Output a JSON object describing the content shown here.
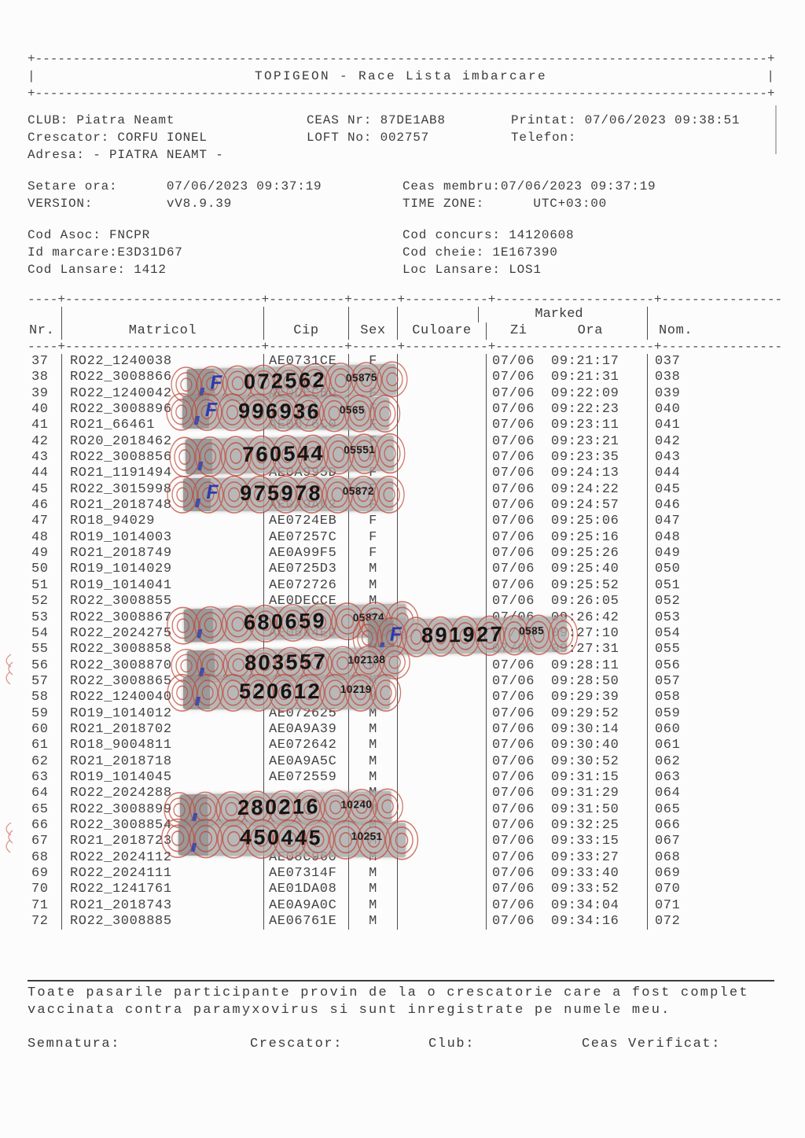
{
  "header_box": {
    "top_line": "+-------------------------------------------------------------------------------------------------+",
    "title": "TOPIGEON  -  Race Lista imbarcare",
    "pipe": "|",
    "bottom_line": "+-------------------------------------------------------------------------------------------------+"
  },
  "club_info": {
    "club": "CLUB: Piatra Neamt",
    "ceas_nr": "CEAS Nr: 87DE1AB8",
    "printat": "Printat: 07/06/2023 09:38:51",
    "crescator": "Crescator: CORFU IONEL",
    "loft": "LOFT No: 002757",
    "telefon": "Telefon:",
    "adresa": "Adresa: - PIATRA NEAMT -"
  },
  "settings": {
    "setare_ora": "Setare ora:      07/06/2023 09:37:19",
    "ceas_membru": "Ceas membru:07/06/2023 09:37:19",
    "version": "VERSION:         vV8.9.39",
    "timezone": "TIME ZONE:      UTC+03:00"
  },
  "codes": {
    "cod_asoc": "Cod Asoc: FNCPR",
    "id_marcare": "Id marcare:E3D31D67",
    "cod_lansare": "Cod Lansare: 1412",
    "cod_concurs": "Cod concurs: 14120608",
    "cod_cheie": "Cod cheie: 1E167390",
    "loc_lansare": "Loc Lansare: LOS1"
  },
  "table": {
    "sep_line": "----+--------------------------+----------+------+-----------+---------------------+----------------",
    "headers": {
      "nr": "Nr.",
      "matricol": "Matricol",
      "cip": "Cip",
      "sex": "Sex",
      "culoare": "Culoare",
      "marked": "Marked",
      "zi": "Zi",
      "ora": "Ora",
      "nom": "Nom."
    },
    "rows": [
      {
        "nr": "37",
        "matricol": "RO22_1240038",
        "cip": "AE0731CE",
        "sex": "F",
        "culoare": "",
        "zi": "07/06",
        "ora": "09:21:17",
        "nom": "037"
      },
      {
        "nr": "38",
        "matricol": "RO22_3008866",
        "cip": "",
        "sex": "F",
        "culoare": "",
        "zi": "07/06",
        "ora": "09:21:31",
        "nom": "038"
      },
      {
        "nr": "39",
        "matricol": "RO22_1240042",
        "cip": "AE0DECBD",
        "sex": "F",
        "culoare": "",
        "zi": "07/06",
        "ora": "09:22:09",
        "nom": "039"
      },
      {
        "nr": "40",
        "matricol": "RO22_3008896",
        "cip": "",
        "sex": "F",
        "culoare": "",
        "zi": "07/06",
        "ora": "09:22:23",
        "nom": "040"
      },
      {
        "nr": "41",
        "matricol": "RO21_66461",
        "cip": "AE0676C0",
        "sex": "F",
        "culoare": "",
        "zi": "07/06",
        "ora": "09:23:11",
        "nom": "041"
      },
      {
        "nr": "42",
        "matricol": "RO20_2018462",
        "cip": "",
        "sex": "F",
        "culoare": "",
        "zi": "07/06",
        "ora": "09:23:21",
        "nom": "042"
      },
      {
        "nr": "43",
        "matricol": "RO22_3008856",
        "cip": "",
        "sex": "F",
        "culoare": "",
        "zi": "07/06",
        "ora": "09:23:35",
        "nom": "043"
      },
      {
        "nr": "44",
        "matricol": "RO21_1191494",
        "cip": "AE0A995D",
        "sex": "F",
        "culoare": "",
        "zi": "07/06",
        "ora": "09:24:13",
        "nom": "044"
      },
      {
        "nr": "45",
        "matricol": "RO22_3015998",
        "cip": "",
        "sex": "F",
        "culoare": "",
        "zi": "07/06",
        "ora": "09:24:22",
        "nom": "045"
      },
      {
        "nr": "46",
        "matricol": "RO21_2018748",
        "cip": "AE0A9A62",
        "sex": "F",
        "culoare": "",
        "zi": "07/06",
        "ora": "09:24:57",
        "nom": "046"
      },
      {
        "nr": "47",
        "matricol": "RO18_94029",
        "cip": "AE0724EB",
        "sex": "F",
        "culoare": "",
        "zi": "07/06",
        "ora": "09:25:06",
        "nom": "047"
      },
      {
        "nr": "48",
        "matricol": "RO19_1014003",
        "cip": "AE07257C",
        "sex": "F",
        "culoare": "",
        "zi": "07/06",
        "ora": "09:25:16",
        "nom": "048"
      },
      {
        "nr": "49",
        "matricol": "RO21_2018749",
        "cip": "AE0A99F5",
        "sex": "F",
        "culoare": "",
        "zi": "07/06",
        "ora": "09:25:26",
        "nom": "049"
      },
      {
        "nr": "50",
        "matricol": "RO19_1014029",
        "cip": "AE0725D3",
        "sex": "M",
        "culoare": "",
        "zi": "07/06",
        "ora": "09:25:40",
        "nom": "050"
      },
      {
        "nr": "51",
        "matricol": "RO19_1014041",
        "cip": "AE072726",
        "sex": "M",
        "culoare": "",
        "zi": "07/06",
        "ora": "09:25:52",
        "nom": "051"
      },
      {
        "nr": "52",
        "matricol": "RO22_3008855",
        "cip": "AE0DECCE",
        "sex": "M",
        "culoare": "",
        "zi": "07/06",
        "ora": "09:26:05",
        "nom": "052"
      },
      {
        "nr": "53",
        "matricol": "RO22_3008867",
        "cip": "",
        "sex": "M",
        "culoare": "",
        "zi": "07/06",
        "ora": "09:26:42",
        "nom": "053"
      },
      {
        "nr": "54",
        "matricol": "RO22_2024275",
        "cip": "AE0684ED",
        "sex": "M",
        "culoare": "",
        "zi": "07/06",
        "ora": "09:27:10",
        "nom": "054"
      },
      {
        "nr": "55",
        "matricol": "RO22_3008858",
        "cip": "",
        "sex": "M",
        "culoare": "",
        "zi": "07/06",
        "ora": "09:27:31",
        "nom": "055"
      },
      {
        "nr": "56",
        "matricol": "RO22_3008870",
        "cip": "",
        "sex": "M",
        "culoare": "",
        "zi": "07/06",
        "ora": "09:28:11",
        "nom": "056"
      },
      {
        "nr": "57",
        "matricol": "RO22_3008865",
        "cip": "",
        "sex": "M",
        "culoare": "",
        "zi": "07/06",
        "ora": "09:28:50",
        "nom": "057"
      },
      {
        "nr": "58",
        "matricol": "RO22_1240040",
        "cip": "",
        "sex": "M",
        "culoare": "",
        "zi": "07/06",
        "ora": "09:29:39",
        "nom": "058"
      },
      {
        "nr": "59",
        "matricol": "RO19_1014012",
        "cip": "AE072625",
        "sex": "M",
        "culoare": "",
        "zi": "07/06",
        "ora": "09:29:52",
        "nom": "059"
      },
      {
        "nr": "60",
        "matricol": "RO21_2018702",
        "cip": "AE0A9A39",
        "sex": "M",
        "culoare": "",
        "zi": "07/06",
        "ora": "09:30:14",
        "nom": "060"
      },
      {
        "nr": "61",
        "matricol": "RO18_9004811",
        "cip": "AE072642",
        "sex": "M",
        "culoare": "",
        "zi": "07/06",
        "ora": "09:30:40",
        "nom": "061"
      },
      {
        "nr": "62",
        "matricol": "RO21_2018718",
        "cip": "AE0A9A5C",
        "sex": "M",
        "culoare": "",
        "zi": "07/06",
        "ora": "09:30:52",
        "nom": "062"
      },
      {
        "nr": "63",
        "matricol": "RO19_1014045",
        "cip": "AE072559",
        "sex": "M",
        "culoare": "",
        "zi": "07/06",
        "ora": "09:31:15",
        "nom": "063"
      },
      {
        "nr": "64",
        "matricol": "RO22_2024288",
        "cip": "",
        "sex": "M",
        "culoare": "",
        "zi": "07/06",
        "ora": "09:31:29",
        "nom": "064"
      },
      {
        "nr": "65",
        "matricol": "RO22_3008899",
        "cip": "",
        "sex": "M",
        "culoare": "",
        "zi": "07/06",
        "ora": "09:31:50",
        "nom": "065"
      },
      {
        "nr": "66",
        "matricol": "RO22_3008854",
        "cip": "",
        "sex": "M",
        "culoare": "",
        "zi": "07/06",
        "ora": "09:32:25",
        "nom": "066"
      },
      {
        "nr": "67",
        "matricol": "RO21_2018723",
        "cip": "",
        "sex": "M",
        "culoare": "",
        "zi": "07/06",
        "ora": "09:33:15",
        "nom": "067"
      },
      {
        "nr": "68",
        "matricol": "RO22_2024112",
        "cip": "AE08C960",
        "sex": "M",
        "culoare": "",
        "zi": "07/06",
        "ora": "09:33:27",
        "nom": "068"
      },
      {
        "nr": "69",
        "matricol": "RO22_2024111",
        "cip": "AE07314F",
        "sex": "M",
        "culoare": "",
        "zi": "07/06",
        "ora": "09:33:40",
        "nom": "069"
      },
      {
        "nr": "70",
        "matricol": "RO22_1241761",
        "cip": "AE01DA08",
        "sex": "M",
        "culoare": "",
        "zi": "07/06",
        "ora": "09:33:52",
        "nom": "070"
      },
      {
        "nr": "71",
        "matricol": "RO21_2018743",
        "cip": "AE0A9A0C",
        "sex": "M",
        "culoare": "",
        "zi": "07/06",
        "ora": "09:34:04",
        "nom": "071"
      },
      {
        "nr": "72",
        "matricol": "RO22_3008885",
        "cip": "AE06761E",
        "sex": "M",
        "culoare": "",
        "zi": "07/06",
        "ora": "09:34:16",
        "nom": "072"
      }
    ]
  },
  "stickers": [
    {
      "number": "072562",
      "code": "05875",
      "mark": "F"
    },
    {
      "number": "996936",
      "code": "0565",
      "mark": "F"
    },
    {
      "number": "760544",
      "code": "05551",
      "mark": ""
    },
    {
      "number": "975978",
      "code": "05872",
      "mark": "F"
    },
    {
      "number": "680659",
      "code": "05874",
      "mark": ""
    },
    {
      "number": "891927",
      "code": "0585",
      "mark": "F"
    },
    {
      "number": "803557",
      "code": "102138",
      "mark": ""
    },
    {
      "number": "520612",
      "code": "10219",
      "mark": ""
    },
    {
      "number": "280216",
      "code": "10240",
      "mark": ""
    },
    {
      "number": "450445",
      "code": "10251",
      "mark": ""
    }
  ],
  "footer": {
    "note_line1": "Toate pasarile participante provin de la o crescatorie care a fost complet",
    "note_line2": "vaccinata contra paramyxovirus si sunt inregistrate pe numele meu.",
    "semnatura": "Semnatura:",
    "crescator": "Crescator:",
    "club": "Club:",
    "ceas_verificat": "Ceas Verificat:"
  },
  "colors": {
    "paper": "#fcfcfc",
    "ink": "#3d3d3d",
    "sticker_gray": "#a8a8a8",
    "sticker_red": "#c24434",
    "sticker_blue": "#2433ae"
  }
}
